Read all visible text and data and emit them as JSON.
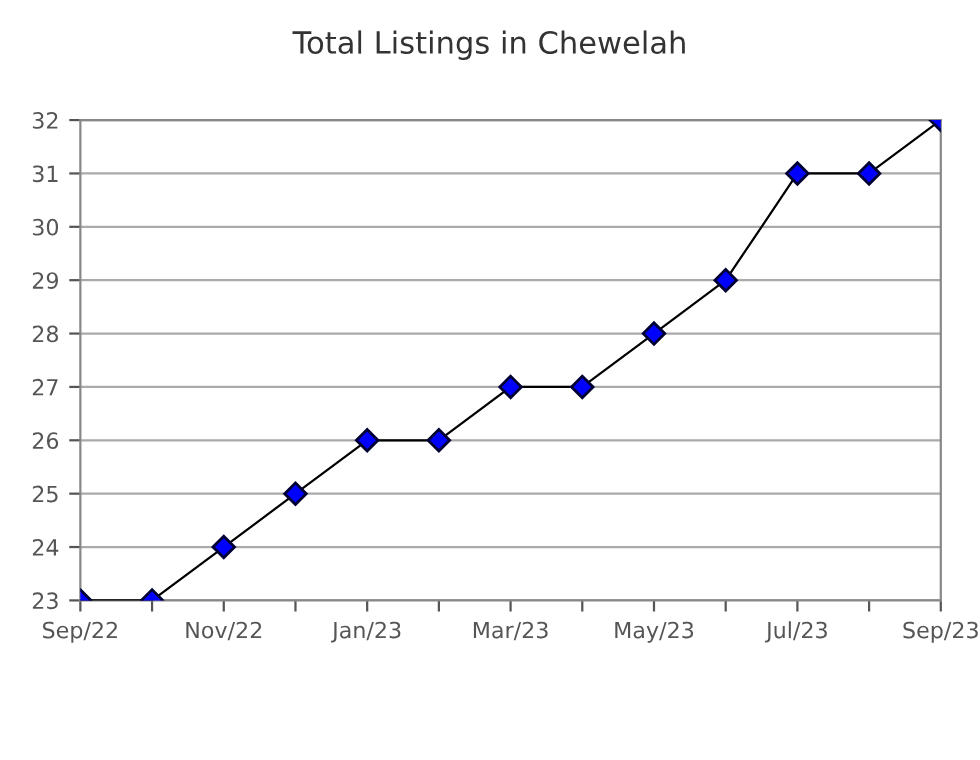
{
  "chart_data": {
    "type": "line",
    "title": "Total Listings in Chewelah",
    "categories": [
      "Sep/22",
      null,
      "Nov/22",
      null,
      "Jan/23",
      null,
      "Mar/23",
      null,
      "May/23",
      null,
      "Jul/23",
      null,
      "Sep/23"
    ],
    "series": [
      {
        "color": "#0000ff",
        "values": [
          23,
          23,
          24,
          25,
          26,
          26,
          27,
          27,
          28,
          29,
          31,
          31,
          32
        ]
      }
    ],
    "ylim": [
      23,
      32
    ],
    "yticks": [
      23,
      24,
      25,
      26,
      27,
      28,
      29,
      30,
      31,
      32
    ],
    "grid": "y",
    "marker": "diamond",
    "line_style": "solid",
    "legend": false
  }
}
